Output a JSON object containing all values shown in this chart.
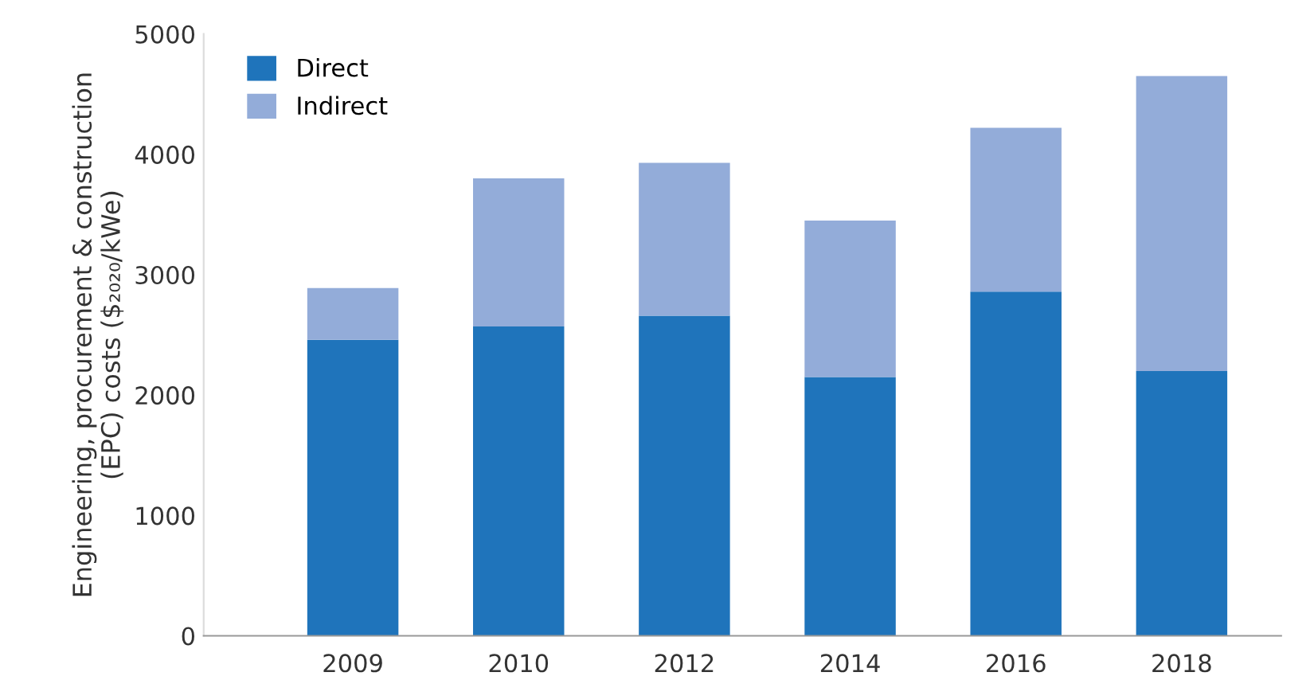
{
  "chart_data": {
    "type": "bar",
    "stacked": true,
    "ylabel": "Engineering, procurement & construction\n(EPC) costs ($₂₀₂₀/kWe)",
    "categories": [
      "2009",
      "2010",
      "2012",
      "2014",
      "2016",
      "2018"
    ],
    "series": [
      {
        "name": "Direct",
        "color": "#1f74bb",
        "values": [
          2460,
          2570,
          2660,
          2150,
          2860,
          2200
        ]
      },
      {
        "name": "Indirect",
        "color": "#93acd9",
        "values": [
          430,
          1230,
          1270,
          1300,
          1360,
          2450
        ]
      }
    ],
    "ylim": [
      0,
      5000
    ],
    "yticks": [
      0,
      1000,
      2000,
      3000,
      4000,
      5000
    ],
    "grid": false,
    "legend": "top left"
  }
}
